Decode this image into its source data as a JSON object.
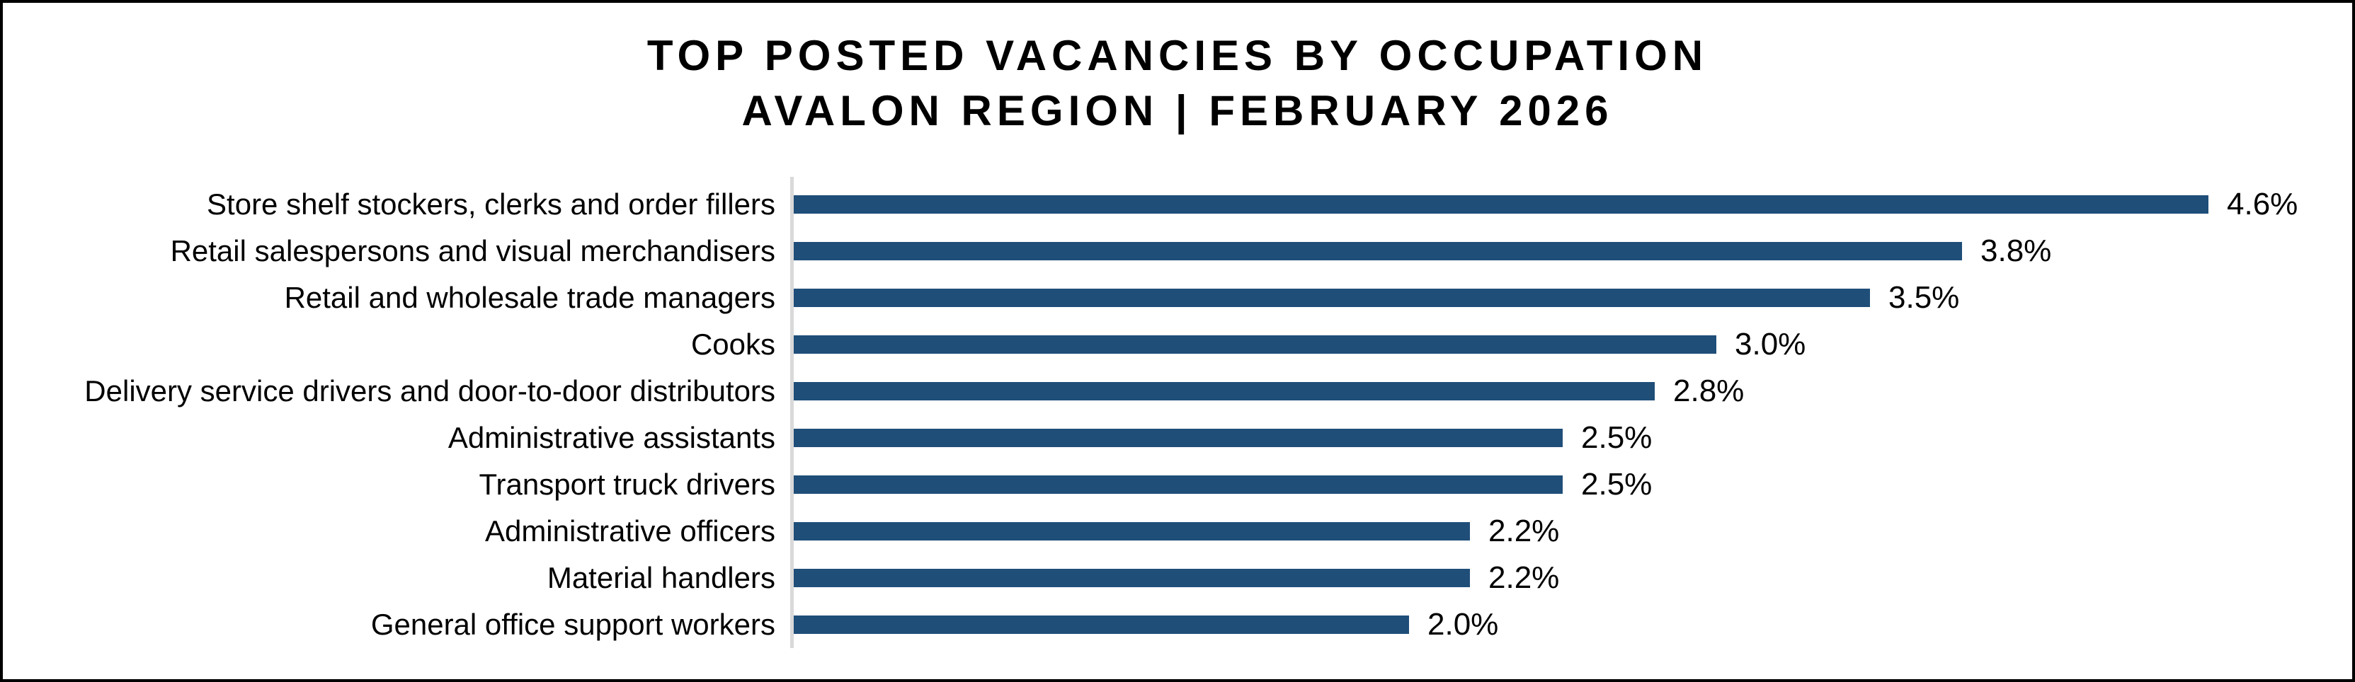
{
  "chart_data": {
    "type": "bar",
    "orientation": "horizontal",
    "title_line1": "TOP POSTED VACANCIES BY OCCUPATION",
    "title_line2": "AVALON REGION | FEBRUARY 2026",
    "categories": [
      "Store shelf stockers, clerks and order fillers",
      "Retail salespersons and visual merchandisers",
      "Retail and wholesale trade managers",
      "Cooks",
      "Delivery service drivers and door-to-door distributors",
      "Administrative assistants",
      "Transport truck drivers",
      "Administrative officers",
      "Material handlers",
      "General office support workers"
    ],
    "values": [
      4.6,
      3.8,
      3.5,
      3.0,
      2.8,
      2.5,
      2.5,
      2.2,
      2.2,
      2.0
    ],
    "value_labels": [
      "4.6%",
      "3.8%",
      "3.5%",
      "3.0%",
      "2.8%",
      "2.5%",
      "2.5%",
      "2.2%",
      "2.2%",
      "2.0%"
    ],
    "xlabel": "",
    "ylabel": "",
    "xlim": [
      0,
      4.95
    ],
    "grid": false,
    "legend": false,
    "bar_color": "#1F4E79",
    "axis_line_color": "#D9D9D9",
    "frame_border_color": "#000000",
    "background_color": "#FFFFFF"
  }
}
